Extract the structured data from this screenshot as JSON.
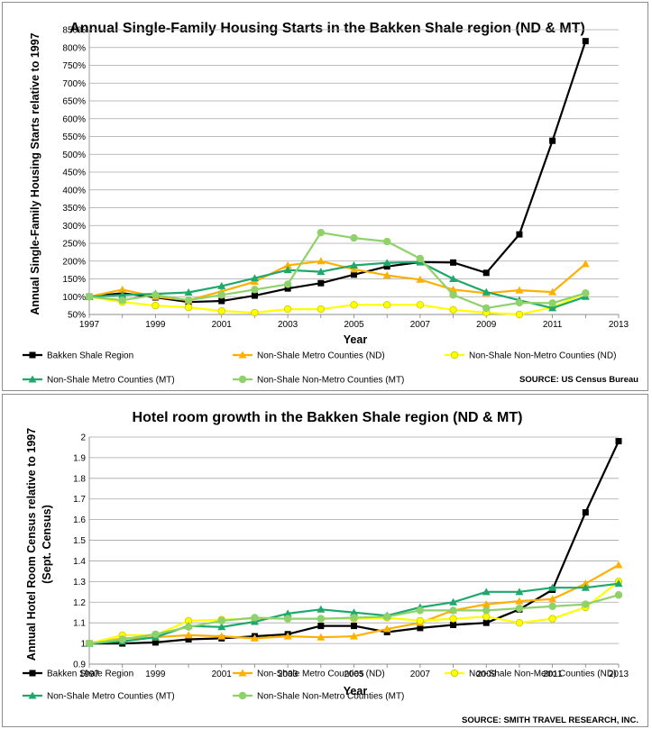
{
  "chart_data": [
    {
      "type": "line",
      "title": "Annual Single-Family Housing Starts in the Bakken Shale region (ND & MT)",
      "xlabel": "Year",
      "ylabel": "Annual Single-Family Housing Starts relative to 1997",
      "source": "SOURCE: US Census Bureau",
      "x": [
        1997,
        1998,
        1999,
        2000,
        2001,
        2002,
        2003,
        2004,
        2005,
        2006,
        2007,
        2008,
        2009,
        2010,
        2011,
        2012
      ],
      "xlim": [
        1997,
        2013
      ],
      "x_ticks": [
        1997,
        1999,
        2001,
        2003,
        2005,
        2007,
        2009,
        2011,
        2013
      ],
      "ylim": [
        50,
        850
      ],
      "y_ticks": [
        50,
        100,
        150,
        200,
        250,
        300,
        350,
        400,
        450,
        500,
        550,
        600,
        650,
        700,
        750,
        800,
        850
      ],
      "y_tick_labels": [
        "50%",
        "100%",
        "150%",
        "200%",
        "250%",
        "300%",
        "350%",
        "400%",
        "450%",
        "500%",
        "550%",
        "600%",
        "650%",
        "700%",
        "750%",
        "800%",
        "850%"
      ],
      "grid": true,
      "legend_position": "bottom",
      "series": [
        {
          "name": "Bakken Shale Region",
          "color": "#000000",
          "marker": "square",
          "values": [
            100,
            110,
            98,
            85,
            88,
            103,
            123,
            138,
            162,
            185,
            197,
            196,
            167,
            275,
            538,
            818
          ]
        },
        {
          "name": "Non-Shale Metro Counties (ND)",
          "color": "#ffb000",
          "marker": "triangle",
          "values": [
            100,
            120,
            100,
            90,
            115,
            142,
            188,
            200,
            177,
            160,
            148,
            120,
            110,
            118,
            113,
            192
          ]
        },
        {
          "name": "Non-Shale Non-Metro Counties (ND)",
          "color": "#ffff00",
          "marker": "circle",
          "values": [
            100,
            85,
            75,
            70,
            60,
            55,
            65,
            65,
            77,
            77,
            77,
            63,
            55,
            50,
            70,
            110
          ]
        },
        {
          "name": "Non-Shale Metro Counties (MT)",
          "color": "#1ea86c",
          "marker": "triangle",
          "values": [
            100,
            105,
            108,
            112,
            130,
            152,
            175,
            170,
            188,
            195,
            197,
            150,
            113,
            90,
            68,
            100
          ]
        },
        {
          "name": "Non-Shale Non-Metro Counties (MT)",
          "color": "#8fd16a",
          "marker": "circle",
          "values": [
            100,
            90,
            105,
            90,
            105,
            120,
            135,
            280,
            265,
            255,
            207,
            105,
            68,
            83,
            82,
            110
          ]
        }
      ]
    },
    {
      "type": "line",
      "title": "Hotel room growth in the Bakken Shale region (ND & MT)",
      "xlabel": "Year",
      "ylabel": "Annual Hotel Room Census relative to 1997",
      "ylabel2": "(Sept. Census)",
      "source": "SOURCE: SMITH TRAVEL RESEARCH, INC.",
      "x": [
        1997,
        1998,
        1999,
        2000,
        2001,
        2002,
        2003,
        2004,
        2005,
        2006,
        2007,
        2008,
        2009,
        2010,
        2011,
        2012,
        2013
      ],
      "xlim": [
        1997,
        2013
      ],
      "x_ticks": [
        1997,
        1999,
        2001,
        2003,
        2005,
        2007,
        2009,
        2011,
        2013
      ],
      "ylim": [
        0.9,
        2
      ],
      "y_ticks": [
        0.9,
        1,
        1.1,
        1.2,
        1.3,
        1.4,
        1.5,
        1.6,
        1.7,
        1.8,
        1.9,
        2
      ],
      "y_tick_labels": [
        "0.9",
        "1",
        "1.1",
        "1.2",
        "1.3",
        "1.4",
        "1.5",
        "1.6",
        "1.7",
        "1.8",
        "1.9",
        "2"
      ],
      "grid": true,
      "legend_position": "bottom",
      "series": [
        {
          "name": "Bakken Shale Region",
          "color": "#000000",
          "marker": "square",
          "values": [
            1.0,
            1.0,
            1.005,
            1.02,
            1.025,
            1.035,
            1.045,
            1.085,
            1.085,
            1.055,
            1.075,
            1.09,
            1.1,
            1.165,
            1.26,
            1.635,
            1.98
          ]
        },
        {
          "name": "Non-Shale Metro Counties (ND)",
          "color": "#ffb000",
          "marker": "triangle",
          "values": [
            1.0,
            1.025,
            1.03,
            1.04,
            1.035,
            1.025,
            1.035,
            1.03,
            1.035,
            1.07,
            1.1,
            1.16,
            1.19,
            1.205,
            1.215,
            1.29,
            1.38
          ]
        },
        {
          "name": "Non-Shale Non-Metro Counties (ND)",
          "color": "#ffff00",
          "marker": "circle",
          "values": [
            1.0,
            1.04,
            1.04,
            1.11,
            1.115,
            1.12,
            1.12,
            1.12,
            1.12,
            1.125,
            1.11,
            1.12,
            1.13,
            1.1,
            1.12,
            1.175,
            1.3
          ]
        },
        {
          "name": "Non-Shale Metro Counties (MT)",
          "color": "#1ea86c",
          "marker": "triangle",
          "values": [
            1.0,
            1.01,
            1.03,
            1.085,
            1.08,
            1.105,
            1.145,
            1.165,
            1.15,
            1.135,
            1.175,
            1.2,
            1.25,
            1.25,
            1.27,
            1.27,
            1.29
          ]
        },
        {
          "name": "Non-Shale Non-Metro Counties (MT)",
          "color": "#8fd16a",
          "marker": "circle",
          "values": [
            1.0,
            1.02,
            1.045,
            1.08,
            1.11,
            1.125,
            1.12,
            1.12,
            1.125,
            1.13,
            1.16,
            1.16,
            1.16,
            1.17,
            1.18,
            1.19,
            1.235
          ]
        }
      ]
    }
  ]
}
